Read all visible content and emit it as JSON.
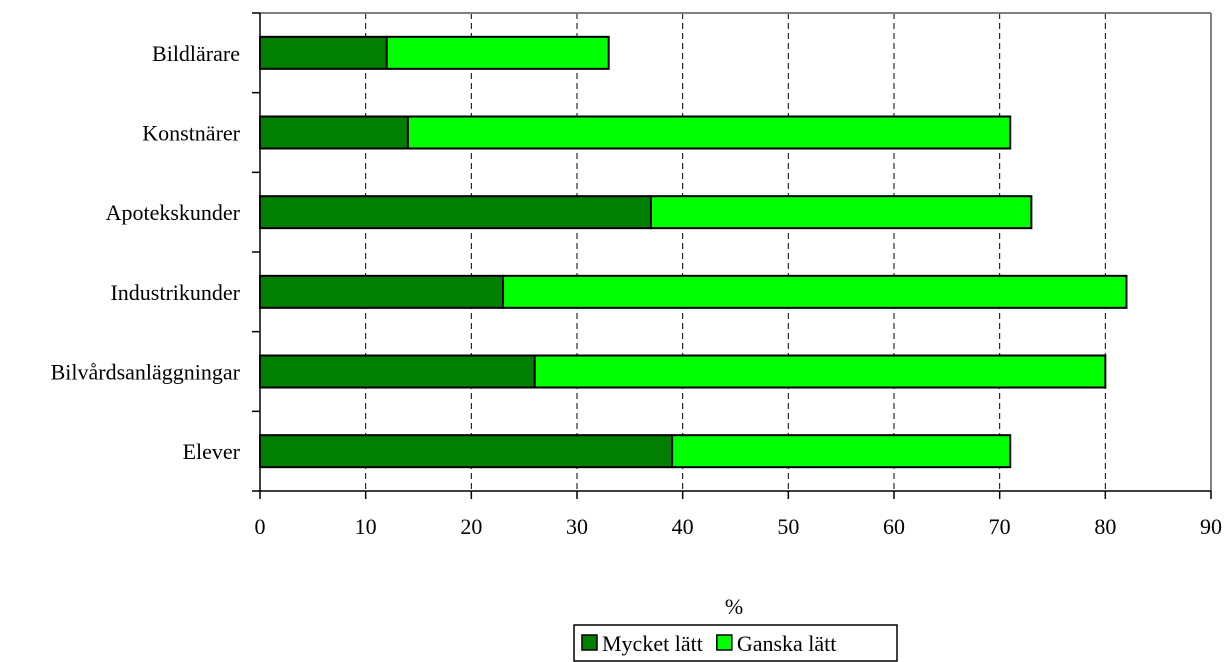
{
  "chart_data": {
    "type": "bar",
    "orientation": "horizontal",
    "stacked": true,
    "categories": [
      "Bildlärare",
      "Konstnärer",
      "Apotekskunder",
      "Industrikunder",
      "Bilvårdsanläggningar",
      "Elever"
    ],
    "series": [
      {
        "name": "Mycket lätt",
        "values": [
          12,
          14,
          37,
          23,
          26,
          39
        ],
        "color": "#007F00"
      },
      {
        "name": "Ganska lätt",
        "values": [
          21,
          57,
          36,
          59,
          54,
          32
        ],
        "color": "#00FF00"
      }
    ],
    "xlabel": "%",
    "xlim": [
      0,
      90
    ],
    "xticks": [
      "0",
      "10",
      "20",
      "30",
      "40",
      "50",
      "60",
      "70",
      "80",
      "90"
    ],
    "grid": "vertical-dashed",
    "legend_position": "bottom"
  }
}
